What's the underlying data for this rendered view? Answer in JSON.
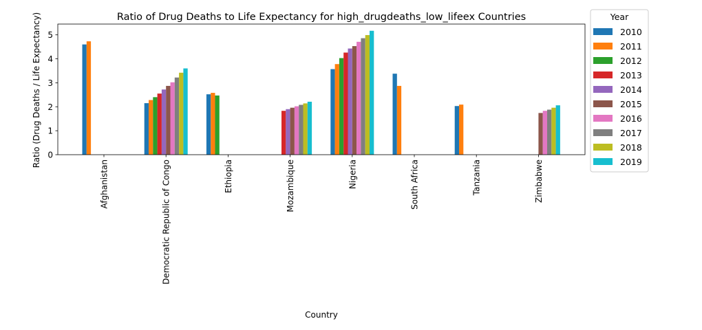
{
  "chart_data": {
    "type": "bar",
    "title": "Ratio of Drug Deaths to Life Expectancy for high_drugdeaths_low_lifeex Countries",
    "xlabel": "Country",
    "ylabel": "Ratio (Drug Deaths / Life Expectancy)",
    "ylim": [
      0,
      5.45
    ],
    "yticks": [
      0,
      1,
      2,
      3,
      4,
      5
    ],
    "grid": false,
    "legend_title": "Year",
    "legend_position": "outside-right",
    "categories": [
      "Afghanistan",
      "Democratic Republic of Congo",
      "Ethiopia",
      "Mozambique",
      "Nigeria",
      "South Africa",
      "Tanzania",
      "Zimbabwe"
    ],
    "series": [
      {
        "name": "2010",
        "color": "#1f77b4",
        "values": [
          4.6,
          2.15,
          2.52,
          null,
          3.57,
          3.38,
          2.03,
          null
        ]
      },
      {
        "name": "2011",
        "color": "#ff7f0e",
        "values": [
          4.73,
          2.28,
          2.58,
          null,
          3.78,
          2.87,
          2.09,
          null
        ]
      },
      {
        "name": "2012",
        "color": "#2ca02c",
        "values": [
          null,
          2.4,
          2.47,
          null,
          4.03,
          null,
          null,
          null
        ]
      },
      {
        "name": "2013",
        "color": "#d62728",
        "values": [
          null,
          2.55,
          null,
          1.83,
          4.26,
          null,
          null,
          null
        ]
      },
      {
        "name": "2014",
        "color": "#9467bd",
        "values": [
          null,
          2.72,
          null,
          1.9,
          4.43,
          null,
          null,
          null
        ]
      },
      {
        "name": "2015",
        "color": "#8c564b",
        "values": [
          null,
          2.87,
          null,
          1.96,
          4.53,
          null,
          null,
          1.74
        ]
      },
      {
        "name": "2016",
        "color": "#e377c2",
        "values": [
          null,
          3.02,
          null,
          2.02,
          4.71,
          null,
          null,
          1.83
        ]
      },
      {
        "name": "2017",
        "color": "#7f7f7f",
        "values": [
          null,
          3.22,
          null,
          2.08,
          4.86,
          null,
          null,
          1.88
        ]
      },
      {
        "name": "2018",
        "color": "#bcbd22",
        "values": [
          null,
          3.42,
          null,
          2.14,
          4.99,
          null,
          null,
          1.96
        ]
      },
      {
        "name": "2019",
        "color": "#17becf",
        "values": [
          null,
          3.6,
          null,
          2.21,
          5.17,
          null,
          null,
          2.06
        ]
      }
    ]
  }
}
